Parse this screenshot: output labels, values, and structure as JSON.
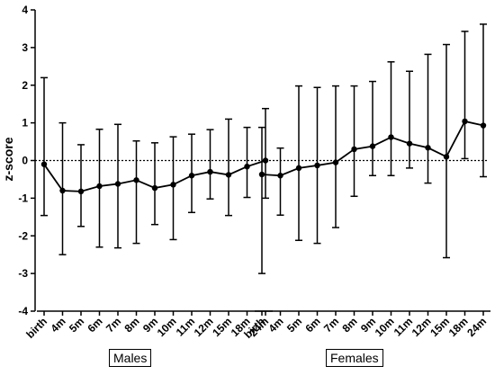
{
  "chart_data": {
    "type": "line",
    "ylabel": "z-score",
    "ylim": [
      -4,
      4
    ],
    "yticks": [
      -4,
      -3,
      -2,
      -1,
      0,
      1,
      2,
      3,
      4
    ],
    "reference_line": {
      "y": 0,
      "style": "dotted"
    },
    "groups": [
      {
        "name": "Males",
        "categories": [
          "birth",
          "4m",
          "5m",
          "6m",
          "7m",
          "8m",
          "9m",
          "10m",
          "11m",
          "12m",
          "15m",
          "18m",
          "24m"
        ],
        "mean": [
          -0.1,
          -0.8,
          -0.82,
          -0.68,
          -0.62,
          -0.52,
          -0.73,
          -0.64,
          -0.4,
          -0.3,
          -0.38,
          -0.16,
          0.0
        ],
        "upper": [
          2.2,
          1.0,
          0.42,
          0.83,
          0.96,
          0.52,
          0.47,
          0.63,
          0.7,
          0.82,
          1.1,
          0.88,
          1.38
        ],
        "lower": [
          -1.46,
          -2.5,
          -1.75,
          -2.3,
          -2.32,
          -2.2,
          -1.7,
          -2.1,
          -1.38,
          -1.02,
          -1.46,
          -0.98,
          -1.0
        ]
      },
      {
        "name": "Females",
        "categories": [
          "birth",
          "4m",
          "5m",
          "6m",
          "7m",
          "8m",
          "9m",
          "10m",
          "11m",
          "12m",
          "15m",
          "18m",
          "24m"
        ],
        "mean": [
          -0.37,
          -0.4,
          -0.2,
          -0.13,
          -0.05,
          0.3,
          0.38,
          0.62,
          0.45,
          0.34,
          0.1,
          1.04,
          0.93
        ],
        "upper": [
          0.88,
          0.33,
          1.98,
          1.94,
          1.98,
          1.98,
          2.1,
          2.62,
          2.37,
          2.82,
          3.08,
          3.43,
          3.62
        ],
        "lower": [
          -3.0,
          -1.45,
          -2.12,
          -2.2,
          -1.78,
          -0.95,
          -0.4,
          -0.4,
          -0.2,
          -0.6,
          -2.58,
          0.05,
          -0.43
        ]
      }
    ]
  }
}
